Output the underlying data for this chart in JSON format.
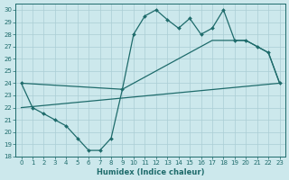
{
  "xlabel": "Humidex (Indice chaleur)",
  "xlim": [
    -0.5,
    23.5
  ],
  "ylim": [
    18,
    30.5
  ],
  "yticks": [
    18,
    19,
    20,
    21,
    22,
    23,
    24,
    25,
    26,
    27,
    28,
    29,
    30
  ],
  "xticks": [
    0,
    1,
    2,
    3,
    4,
    5,
    6,
    7,
    8,
    9,
    10,
    11,
    12,
    13,
    14,
    15,
    16,
    17,
    18,
    19,
    20,
    21,
    22,
    23
  ],
  "bg_color": "#cce8ec",
  "grid_color": "#aacdd4",
  "line_color": "#1e6b6b",
  "line1_x": [
    0,
    1,
    2,
    3,
    4,
    5,
    6,
    7,
    8,
    9,
    10,
    11,
    12,
    13,
    14,
    15,
    16,
    17,
    18,
    19,
    20,
    21,
    22,
    23
  ],
  "line1_y": [
    24,
    22,
    21.5,
    21,
    20.5,
    19.5,
    18.5,
    18.5,
    19.5,
    23.5,
    28,
    29.5,
    30,
    29.2,
    28.5,
    29.3,
    28,
    28.5,
    30,
    27.5,
    27.5,
    27,
    26.5,
    24
  ],
  "line2_x": [
    0,
    9,
    17,
    20,
    21,
    22,
    23
  ],
  "line2_y": [
    24,
    23.5,
    27.5,
    27.5,
    27,
    26.5,
    24
  ],
  "line3_x": [
    0,
    23
  ],
  "line3_y": [
    22,
    24
  ]
}
